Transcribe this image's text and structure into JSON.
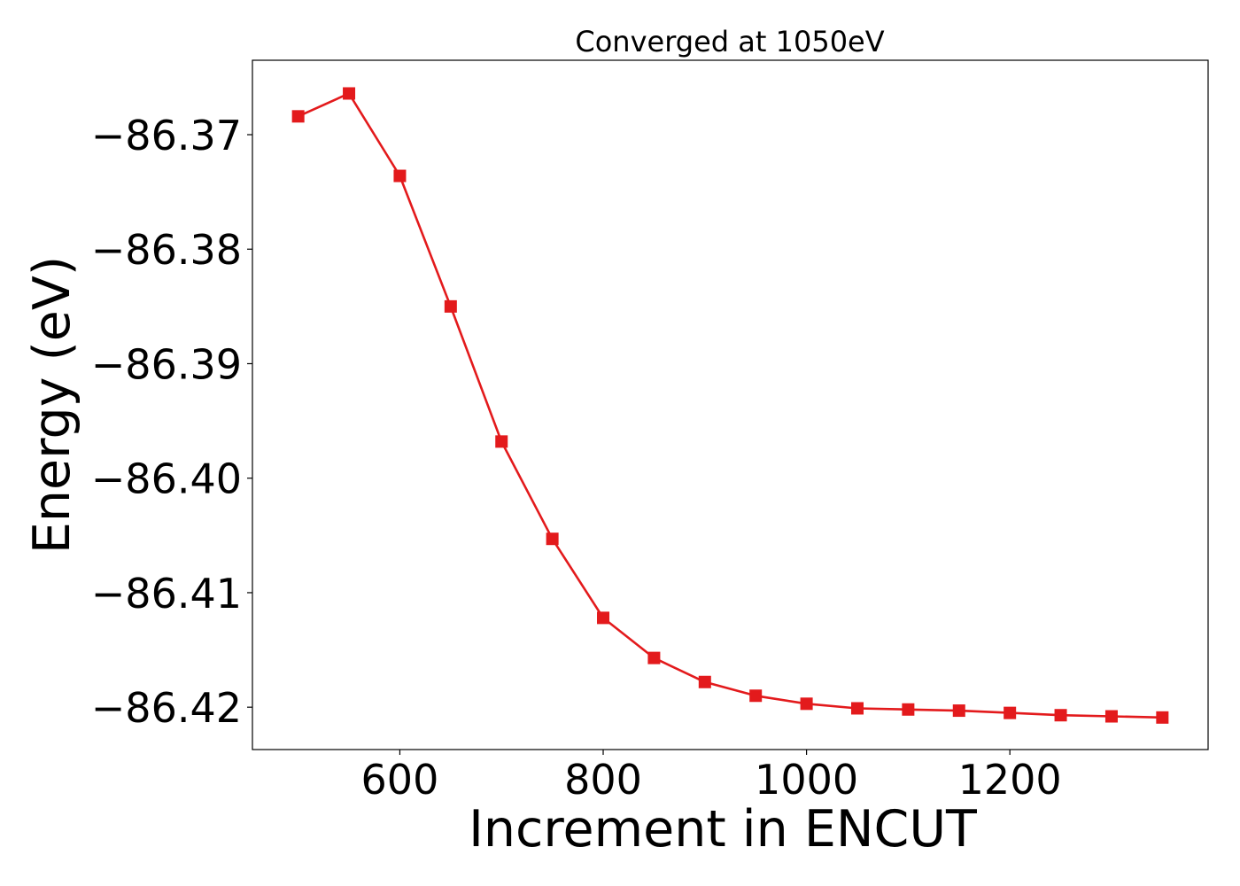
{
  "chart_data": {
    "type": "line",
    "title": "Converged at 1050eV",
    "xlabel": "Increment in ENCUT",
    "ylabel": "Energy (eV)",
    "xlim": [
      455,
      1395
    ],
    "ylim": [
      -86.4237,
      -86.3635
    ],
    "x_ticks": [
      600,
      800,
      1000,
      1200
    ],
    "x_tick_labels": [
      "600",
      "800",
      "1000",
      "1200"
    ],
    "y_ticks": [
      -86.37,
      -86.38,
      -86.39,
      -86.4,
      -86.41,
      -86.42
    ],
    "y_tick_labels": [
      "−86.37",
      "−86.38",
      "−86.39",
      "−86.40",
      "−86.41",
      "−86.42"
    ],
    "grid": false,
    "legend": "none",
    "series": [
      {
        "color": "#e31a1c",
        "marker": "square",
        "x": [
          500,
          550,
          600,
          650,
          700,
          750,
          800,
          850,
          900,
          950,
          1000,
          1050,
          1100,
          1150,
          1200,
          1250,
          1300,
          1350
        ],
        "y": [
          -86.3684,
          -86.3664,
          -86.3736,
          -86.385,
          -86.3968,
          -86.4053,
          -86.4122,
          -86.4157,
          -86.4178,
          -86.419,
          -86.4197,
          -86.4201,
          -86.4202,
          -86.4203,
          -86.4205,
          -86.4207,
          -86.4208,
          -86.4209
        ]
      }
    ]
  }
}
